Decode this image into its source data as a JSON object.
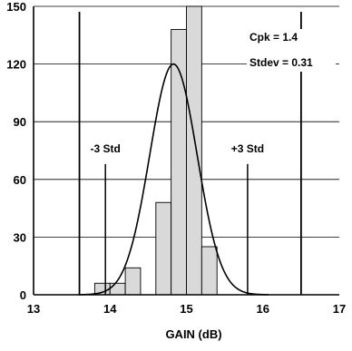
{
  "chart_data": {
    "type": "bar",
    "xlabel": "GAIN (dB)",
    "ylabel": "",
    "xlim": [
      13,
      17
    ],
    "ylim": [
      0,
      150
    ],
    "x_ticks": [
      "13",
      "14",
      "15",
      "16",
      "17"
    ],
    "y_ticks": [
      "0",
      "30",
      "60",
      "90",
      "120",
      "150"
    ],
    "grid": true,
    "bins": [
      {
        "start": 13.8,
        "end": 14.0,
        "value": 6
      },
      {
        "start": 14.0,
        "end": 14.2,
        "value": 6
      },
      {
        "start": 14.2,
        "end": 14.4,
        "value": 14
      },
      {
        "start": 14.4,
        "end": 14.6,
        "value": 0
      },
      {
        "start": 14.6,
        "end": 14.8,
        "value": 48
      },
      {
        "start": 14.8,
        "end": 15.0,
        "value": 138
      },
      {
        "start": 15.0,
        "end": 15.2,
        "value": 150
      },
      {
        "start": 15.2,
        "end": 15.4,
        "value": 25
      }
    ],
    "normal_curve": {
      "mean": 14.83,
      "stdev": 0.31,
      "peak": 120
    },
    "spec_limits": [
      13.6,
      16.5
    ],
    "markers": [
      {
        "label": "-3 Std",
        "x": 13.94
      },
      {
        "label": "+3 Std",
        "x": 15.8
      }
    ],
    "annotations": [
      "Cpk = 1.4",
      "Stdev = 0.31"
    ],
    "bar_color": "#d9d9d9"
  }
}
